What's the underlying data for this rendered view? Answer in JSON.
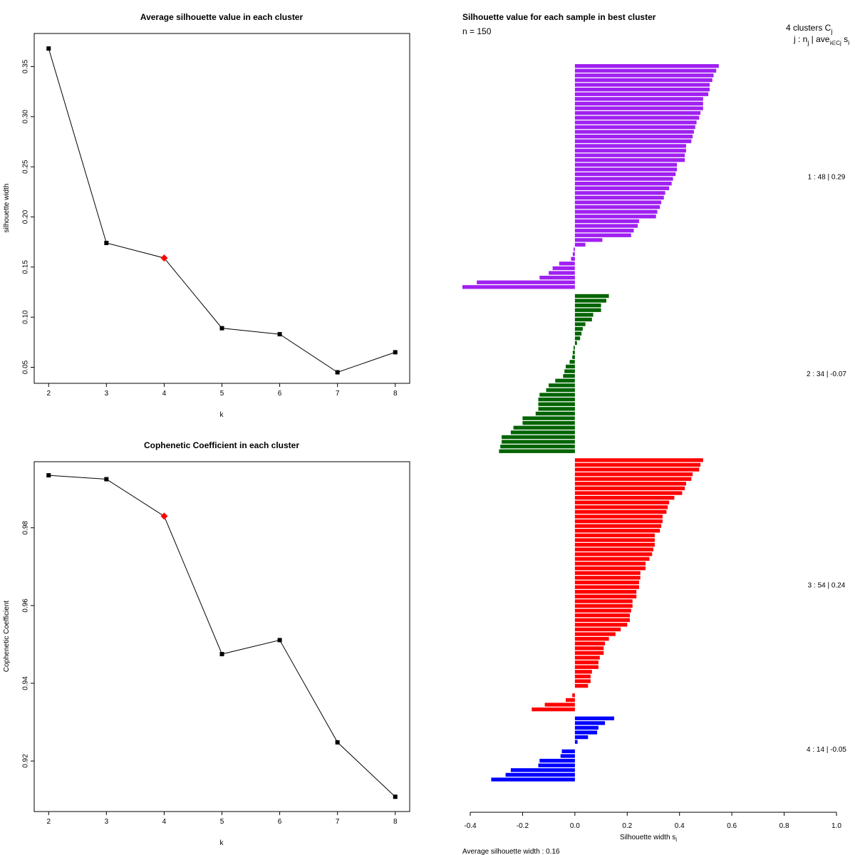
{
  "chart_data": [
    {
      "type": "line",
      "title": "Average silhouette value in each cluster",
      "xlabel": "k",
      "ylabel": "silhouette width",
      "x": [
        2,
        3,
        4,
        5,
        6,
        7,
        8
      ],
      "values": [
        0.368,
        0.174,
        0.159,
        0.089,
        0.083,
        0.045,
        0.065
      ],
      "highlight_x": 4,
      "highlight_color": "#ff0000",
      "xlim": [
        1.75,
        8.25
      ],
      "ylim": [
        0.034,
        0.383
      ],
      "xticks": [
        "2",
        "3",
        "4",
        "5",
        "6",
        "7",
        "8"
      ],
      "yticks": [
        "0.05",
        "0.10",
        "0.15",
        "0.20",
        "0.25",
        "0.30",
        "0.35"
      ]
    },
    {
      "type": "line",
      "title": "Cophenetic Coefficient in each cluster",
      "xlabel": "k",
      "ylabel": "Cophenetic Coefficient",
      "x": [
        2,
        3,
        4,
        5,
        6,
        7,
        8
      ],
      "values": [
        0.9935,
        0.9925,
        0.983,
        0.9475,
        0.9511,
        0.9248,
        0.9108
      ],
      "highlight_x": 4,
      "highlight_color": "#ff0000",
      "xlim": [
        1.75,
        8.25
      ],
      "ylim": [
        0.907,
        0.997
      ],
      "xticks": [
        "2",
        "3",
        "4",
        "5",
        "6",
        "7",
        "8"
      ],
      "yticks": [
        "0.92",
        "0.94",
        "0.96",
        "0.98"
      ]
    },
    {
      "type": "bar",
      "orientation": "horizontal",
      "title": "Silhouette value for each sample in best cluster",
      "n_label": "n = 150",
      "xlabel": "Silhouette width s",
      "xlabel_sub": "i",
      "xlim": [
        -0.4,
        1.0
      ],
      "xticks": [
        "-0.4",
        "-0.2",
        "0.0",
        "0.2",
        "0.4",
        "0.6",
        "0.8",
        "1.0"
      ],
      "header_line1": "4 clusters C",
      "header_line1_sub": "j",
      "header_line2": "j : n",
      "header_line2_sub": "j",
      "header_line2_rest": " | ave",
      "header_line2_sub2": "i∈Cj",
      "header_line2_end": " s",
      "header_line2_sub3": "i",
      "footer": "Average silhouette width :  0.16",
      "clusters": [
        {
          "label": "1 :  48  |  0.29",
          "color": "#a020f0",
          "values": [
            0.55,
            0.54,
            0.53,
            0.525,
            0.515,
            0.515,
            0.51,
            0.49,
            0.49,
            0.49,
            0.48,
            0.475,
            0.465,
            0.46,
            0.455,
            0.45,
            0.445,
            0.425,
            0.425,
            0.42,
            0.42,
            0.39,
            0.39,
            0.385,
            0.375,
            0.37,
            0.36,
            0.345,
            0.34,
            0.33,
            0.325,
            0.315,
            0.31,
            0.245,
            0.24,
            0.225,
            0.215,
            0.105,
            0.04,
            -0.005,
            -0.008,
            -0.015,
            -0.06,
            -0.085,
            -0.1,
            -0.135,
            -0.375,
            -0.43
          ]
        },
        {
          "label": "2 :  34  |  -0.07",
          "color": "#006400",
          "values": [
            0.13,
            0.12,
            0.1,
            0.1,
            0.07,
            0.065,
            0.04,
            0.03,
            0.025,
            0.02,
            0.008,
            -0.005,
            -0.008,
            -0.01,
            -0.02,
            -0.035,
            -0.04,
            -0.045,
            -0.075,
            -0.1,
            -0.11,
            -0.135,
            -0.14,
            -0.14,
            -0.14,
            -0.15,
            -0.2,
            -0.2,
            -0.235,
            -0.245,
            -0.28,
            -0.28,
            -0.285,
            -0.29
          ]
        },
        {
          "label": "3 :  54  |  0.24",
          "color": "#ff0000",
          "values": [
            0.49,
            0.48,
            0.475,
            0.45,
            0.445,
            0.425,
            0.42,
            0.41,
            0.38,
            0.36,
            0.355,
            0.35,
            0.335,
            0.335,
            0.33,
            0.325,
            0.305,
            0.305,
            0.305,
            0.3,
            0.295,
            0.285,
            0.27,
            0.27,
            0.25,
            0.25,
            0.245,
            0.245,
            0.235,
            0.235,
            0.22,
            0.22,
            0.215,
            0.21,
            0.21,
            0.2,
            0.175,
            0.155,
            0.13,
            0.115,
            0.11,
            0.11,
            0.095,
            0.09,
            0.09,
            0.065,
            0.06,
            0.06,
            0.05,
            0.0,
            -0.01,
            -0.035,
            -0.115,
            -0.165
          ]
        },
        {
          "label": "4 :  14  |  -0.05",
          "color": "#0000ff",
          "values": [
            0.15,
            0.115,
            0.09,
            0.085,
            0.05,
            0.01,
            0.0,
            -0.05,
            -0.055,
            -0.135,
            -0.14,
            -0.245,
            -0.265,
            -0.32
          ]
        }
      ]
    }
  ]
}
